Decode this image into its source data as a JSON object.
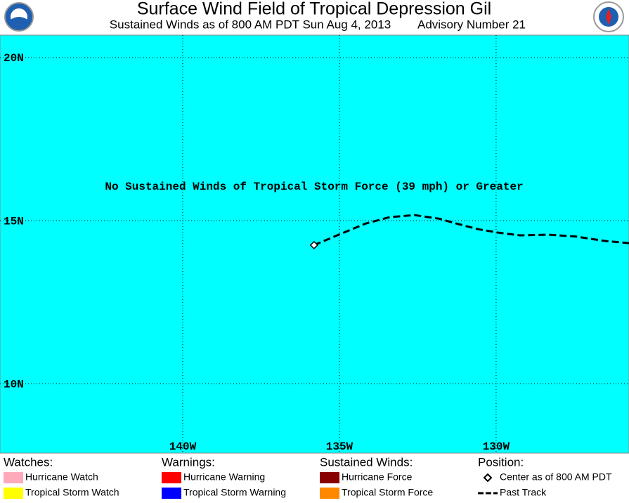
{
  "map": {
    "title": "Surface Wind Field of Tropical Depression Gil",
    "subtitle": "Sustained Winds as of 800 AM PDT Sun Aug 4, 2013",
    "advisory": "Advisory Number 21",
    "annotation": "No Sustained Winds of Tropical Storm Force (39 mph) or Greater",
    "background": "#00ffff",
    "xlim": [
      145.83,
      125.76
    ],
    "ylim": [
      7.87,
      20.69
    ],
    "xticks": [
      {
        "value": 140,
        "label": "140W"
      },
      {
        "value": 135,
        "label": "135W"
      },
      {
        "value": 130,
        "label": "130W"
      }
    ],
    "yticks": [
      {
        "value": 20,
        "label": "20N"
      },
      {
        "value": 15,
        "label": "15N"
      },
      {
        "value": 10,
        "label": "10N"
      }
    ],
    "track": {
      "lon": [
        135.81,
        135.07,
        134.17,
        133.39,
        132.6,
        131.82,
        131.26,
        130.58,
        129.91,
        129.24,
        128.34,
        127.44,
        126.55,
        125.76
      ],
      "lat": [
        14.25,
        14.55,
        14.91,
        15.11,
        15.17,
        15.06,
        14.91,
        14.74,
        14.63,
        14.55,
        14.57,
        14.51,
        14.38,
        14.31
      ]
    },
    "legend": [
      {
        "heading": "Watches:",
        "items": [
          {
            "label": "Hurricane Watch",
            "color": "#ffaabb"
          },
          {
            "label": "Tropical Storm Watch",
            "color": "#ffff00"
          }
        ]
      },
      {
        "heading": "Warnings:",
        "items": [
          {
            "label": "Hurricane Warning",
            "color": "#ff0000"
          },
          {
            "label": "Tropical Storm Warning",
            "color": "#0000ff"
          }
        ]
      },
      {
        "heading": "Sustained Winds:",
        "items": [
          {
            "label": "Hurricane Force",
            "color": "#880000"
          },
          {
            "label": "Tropical Storm Force",
            "color": "#ff8800"
          }
        ]
      },
      {
        "heading": "Position:",
        "items": [
          {
            "label": "Center as of 800 AM PDT"
          },
          {
            "label": "Past Track"
          }
        ]
      }
    ]
  }
}
